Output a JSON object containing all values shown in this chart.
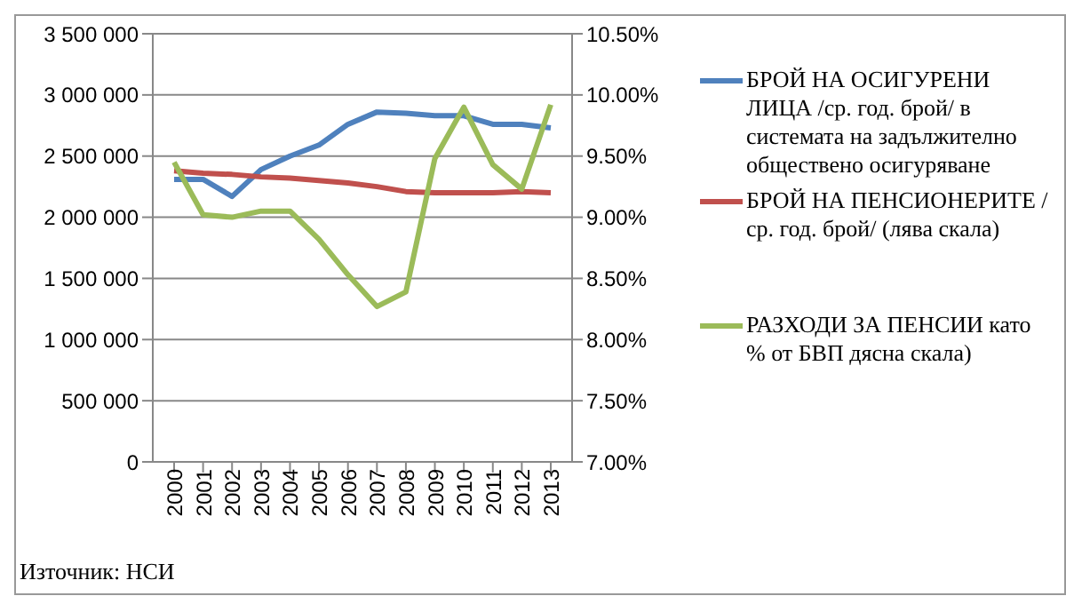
{
  "chart_data": {
    "type": "line",
    "categories": [
      "2000",
      "2001",
      "2002",
      "2003",
      "2004",
      "2005",
      "2006",
      "2007",
      "2008",
      "2009",
      "2010",
      "2011",
      "2012",
      "2013"
    ],
    "series": [
      {
        "name": "БРОЙ НА ОСИГУРЕНИ ЛИЦА /ср. год. брой/ в системата на задължително обществено осигуряване",
        "color": "#4f81bd",
        "values": [
          2310000,
          2310000,
          2170000,
          2390000,
          2500000,
          2590000,
          2760000,
          2860000,
          2850000,
          2830000,
          2830000,
          2760000,
          2760000,
          2730000
        ]
      },
      {
        "name": "БРОЙ НА ПЕНСИОНЕРИТЕ /ср. год. брой/ (лява скала)",
        "color": "#c0504d",
        "values": [
          2380000,
          2360000,
          2350000,
          2330000,
          2320000,
          2300000,
          2280000,
          2250000,
          2210000,
          2200000,
          2200000,
          2200000,
          2210000,
          2200000
        ]
      },
      {
        "name": "РАЗХОДИ ЗА ПЕНСИИ като % от БВП дясна скала)",
        "color": "#9bbb59",
        "axis": "y2",
        "values": [
          9.45,
          9.02,
          9.0,
          9.05,
          9.05,
          8.82,
          8.53,
          8.27,
          8.39,
          9.48,
          9.9,
          9.43,
          9.23,
          9.92
        ]
      }
    ],
    "ylim": [
      0,
      3500000
    ],
    "yticks": [
      {
        "value": 0,
        "label": "0"
      },
      {
        "value": 500000,
        "label": "500 000"
      },
      {
        "value": 1000000,
        "label": "1 000 000"
      },
      {
        "value": 1500000,
        "label": "1 500 000"
      },
      {
        "value": 2000000,
        "label": "2 000 000"
      },
      {
        "value": 2500000,
        "label": "2 500 000"
      },
      {
        "value": 3000000,
        "label": "3 000 000"
      },
      {
        "value": 3500000,
        "label": "3 500 000"
      }
    ],
    "y2lim": [
      7,
      10.5
    ],
    "y2ticks": [
      {
        "value": 7,
        "label": "7.00%"
      },
      {
        "value": 7.5,
        "label": "7.50%"
      },
      {
        "value": 8,
        "label": "8.00%"
      },
      {
        "value": 8.5,
        "label": "8.50%"
      },
      {
        "value": 9,
        "label": "9.00%"
      },
      {
        "value": 9.5,
        "label": "9.50%"
      },
      {
        "value": 10,
        "label": "10.00%"
      },
      {
        "value": 10.5,
        "label": "10.50%"
      }
    ],
    "grid": "y",
    "legend": "right",
    "marker": "none",
    "line_style": "solid",
    "annotations": [
      "Източник: НСИ"
    ]
  }
}
